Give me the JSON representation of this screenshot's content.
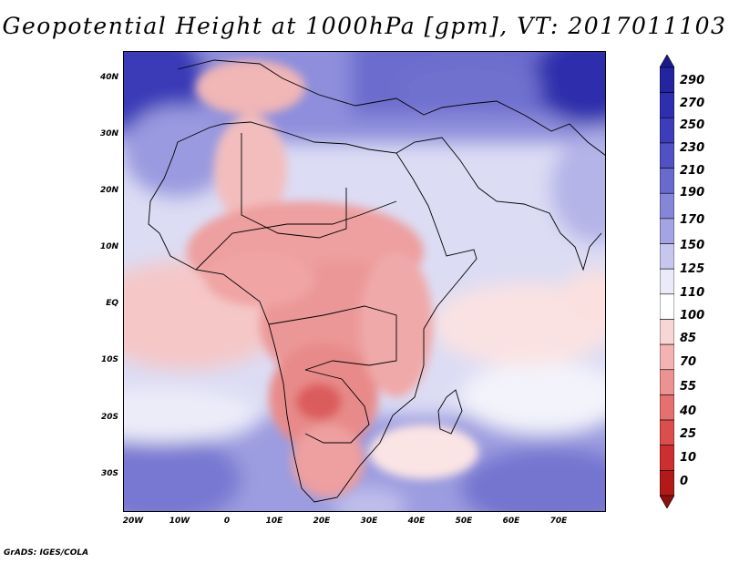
{
  "title": "Geopotential Height at 1000hPa [gpm], VT: 2017011103",
  "footer": "GrADS: IGES/COLA",
  "lat_labels": [
    "40N",
    "30N",
    "20N",
    "10N",
    "EQ",
    "10S",
    "20S",
    "30S"
  ],
  "lon_labels": [
    "20W",
    "10W",
    "0",
    "10E",
    "20E",
    "30E",
    "40E",
    "50E",
    "60E",
    "70E"
  ],
  "colorbar": {
    "levels": [
      "290",
      "270",
      "250",
      "230",
      "210",
      "190",
      "170",
      "150",
      "125",
      "110",
      "100",
      "85",
      "70",
      "55",
      "40",
      "25",
      "10",
      "0"
    ],
    "colors": [
      "#1a1a8e",
      "#24249e",
      "#2e2eae",
      "#3d3dba",
      "#5151c4",
      "#6a6acd",
      "#8686d8",
      "#a4a4e3",
      "#c7c7ee",
      "#eaeaf8",
      "#ffffff",
      "#f9d6d6",
      "#f3b3b3",
      "#ec9292",
      "#e47070",
      "#db4e4e",
      "#cc2f2f",
      "#b21919",
      "#8e0f0f"
    ]
  }
}
